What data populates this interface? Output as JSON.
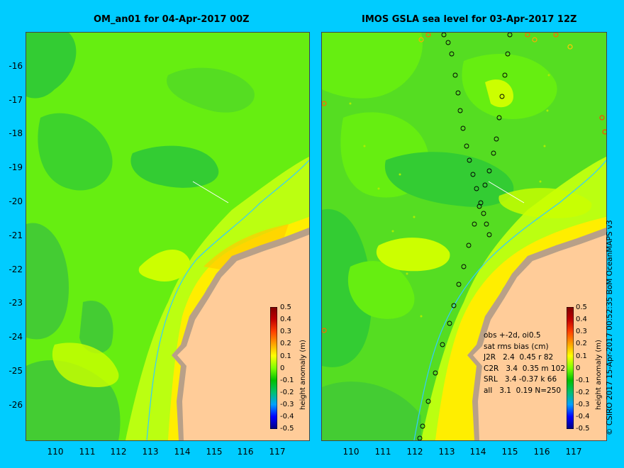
{
  "left_panel": {
    "title": "OM_an01 for 04-Apr-2017 00Z"
  },
  "right_panel": {
    "title": "IMOS GSLA sea level  for 03-Apr-2017 12Z",
    "stats": {
      "line1": "obs +-2d, oi0.5",
      "line2": "sat rms bias (cm)",
      "rows": [
        "J2R   2.4  0.45 r 82",
        "C2R   3.4  0.35 m 102",
        "SRL   3.4 -0.37 k 66",
        "all   3.1  0.19 N=250"
      ]
    }
  },
  "axes": {
    "lat_ticks": [
      "-16",
      "-17",
      "-18",
      "-19",
      "-20",
      "-21",
      "-22",
      "-23",
      "-24",
      "-25",
      "-26"
    ],
    "lon_ticks": [
      "110",
      "111",
      "112",
      "113",
      "114",
      "115",
      "116",
      "117"
    ]
  },
  "colorbar": {
    "title": "height anomaly (m)",
    "ticks": [
      "0.5",
      "0.4",
      "0.3",
      "0.2",
      "0.1",
      "0",
      "-0.1",
      "-0.2",
      "-0.3",
      "-0.4",
      "-0.5"
    ],
    "range": [
      -0.5,
      0.5
    ],
    "colors": [
      "#000080",
      "#0000ff",
      "#00a0ff",
      "#00c070",
      "#00c000",
      "#80ff00",
      "#ffff00",
      "#ffa000",
      "#ff4000",
      "#b00000",
      "#800000"
    ]
  },
  "credit": "© CSIRO 2017   15-Apr-2017 00:52:35 BoM OceanMAPS v3",
  "colors": {
    "background": "#00ccff",
    "land": "#ffcc99",
    "sea_green": "#33cc33",
    "sea_lightgreen": "#66ff00",
    "sea_yellow": "#ccff00",
    "coast_brown": "#b8a088"
  }
}
